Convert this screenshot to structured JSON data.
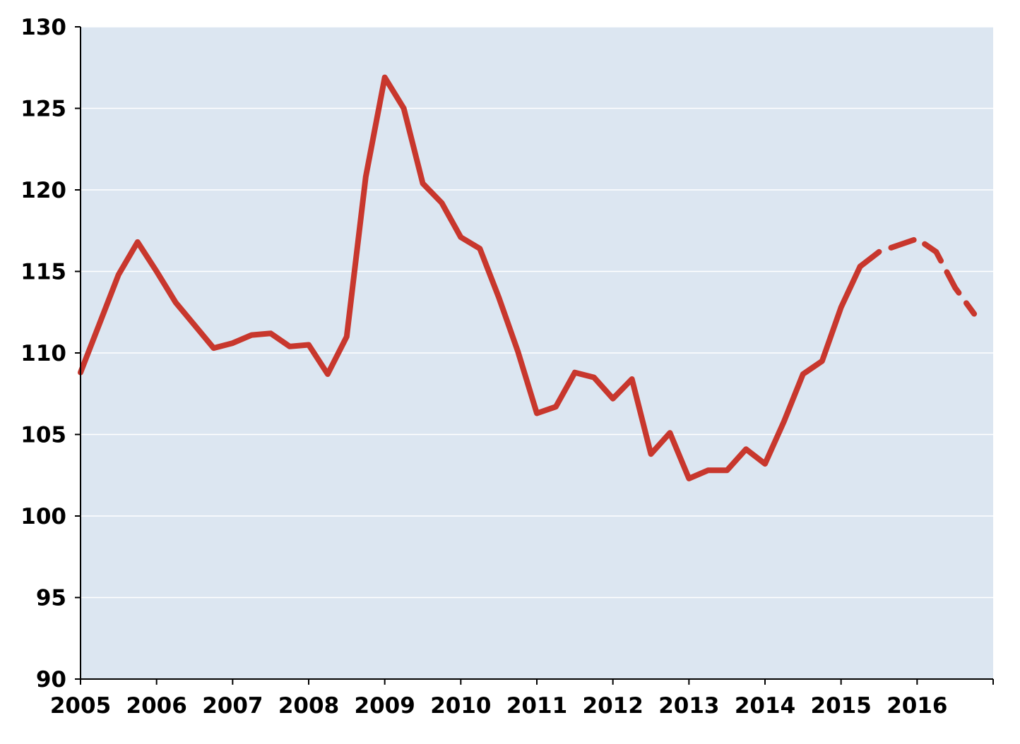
{
  "chart_data": {
    "type": "line",
    "title": "",
    "xlabel": "",
    "ylabel": "",
    "xlim": [
      2005,
      2017
    ],
    "ylim": [
      90,
      130
    ],
    "x_ticks": [
      2005,
      2006,
      2007,
      2008,
      2009,
      2010,
      2011,
      2012,
      2013,
      2014,
      2015,
      2016
    ],
    "x_tick_labels": [
      "2005",
      "2006",
      "2007",
      "2008",
      "2009",
      "2010",
      "2011",
      "2012",
      "2013",
      "2014",
      "2015",
      "2016"
    ],
    "y_ticks": [
      90,
      95,
      100,
      105,
      110,
      115,
      120,
      125,
      130
    ],
    "y_tick_labels": [
      "90",
      "95",
      "100",
      "105",
      "110",
      "115",
      "120",
      "125",
      "130"
    ],
    "grid": "horizontal",
    "legend": "none",
    "colors": {
      "plot_background": "#dce6f1",
      "line": "#c8372d",
      "grid": "#ffffff",
      "axis": "#000000"
    },
    "series": [
      {
        "style": "solid",
        "x": [
          2005.0,
          2005.25,
          2005.5,
          2005.75,
          2006.0,
          2006.25,
          2006.5,
          2006.75,
          2007.0,
          2007.25,
          2007.5,
          2007.75,
          2008.0,
          2008.25,
          2008.5,
          2008.75,
          2009.0,
          2009.25,
          2009.5,
          2009.75,
          2010.0,
          2010.25,
          2010.5,
          2010.75,
          2011.0,
          2011.25,
          2011.5,
          2011.75,
          2012.0,
          2012.25,
          2012.5,
          2012.75,
          2013.0,
          2013.25,
          2013.5,
          2013.75,
          2014.0,
          2014.25,
          2014.5,
          2014.75,
          2015.0,
          2015.25
        ],
        "y": [
          108.8,
          111.8,
          114.8,
          116.8,
          115.0,
          113.1,
          111.7,
          110.3,
          110.6,
          111.1,
          111.2,
          110.4,
          110.5,
          108.7,
          111.0,
          120.8,
          126.9,
          125.0,
          120.4,
          119.2,
          117.1,
          116.4,
          113.4,
          110.1,
          106.3,
          106.7,
          108.8,
          108.5,
          107.2,
          108.4,
          103.8,
          105.1,
          102.3,
          102.8,
          102.8,
          104.1,
          103.2,
          105.8,
          108.7,
          109.5,
          112.8,
          115.3
        ]
      },
      {
        "style": "dashed",
        "x": [
          2015.25,
          2015.5,
          2015.75,
          2016.0,
          2016.25,
          2016.5,
          2016.75
        ],
        "y": [
          115.3,
          116.2,
          116.6,
          117.0,
          116.2,
          114.0,
          112.4
        ]
      }
    ]
  }
}
